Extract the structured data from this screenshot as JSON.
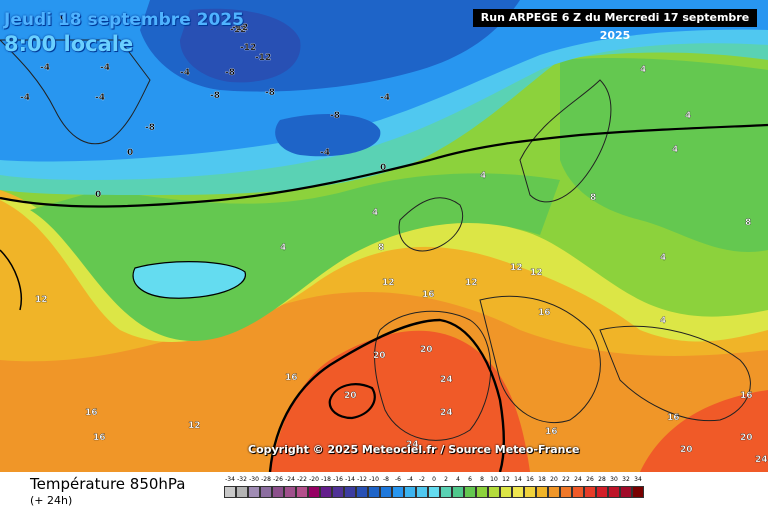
{
  "header": {
    "date": "Jeudi 18 septembre 2025",
    "time": "8:00 locale",
    "run": "Run ARPEGE 6 Z du Mercredi 17 septembre 2025"
  },
  "copyright": "Copyright © 2025 Meteociel.fr / Source Meteo-France",
  "footer": {
    "parameter": "Température 850hPa",
    "lead": "(+ 24h)"
  },
  "legend": {
    "values": [
      "-34",
      "-32",
      "-30",
      "-28",
      "-26",
      "-24",
      "-22",
      "-20",
      "-18",
      "-16",
      "-14",
      "-12",
      "-10",
      "-8",
      "-6",
      "-4",
      "-2",
      "0",
      "2",
      "4",
      "6",
      "8",
      "10",
      "12",
      "14",
      "16",
      "18",
      "20",
      "22",
      "24",
      "26",
      "28",
      "30",
      "32",
      "34"
    ],
    "colors": [
      "#c8c8c8",
      "#b4b4b4",
      "#a08cb4",
      "#8c6ea0",
      "#8c508c",
      "#a0508c",
      "#b4508c",
      "#960064",
      "#641e8c",
      "#503296",
      "#3c3ca0",
      "#2850b4",
      "#1e64c8",
      "#1e78dc",
      "#2896f0",
      "#3cb4f0",
      "#50c8f0",
      "#64dcf0",
      "#5ad2b4",
      "#50c88c",
      "#64c850",
      "#8cd23c",
      "#b4dc3c",
      "#dce646",
      "#f0e650",
      "#f0d23c",
      "#f0b428",
      "#f09628",
      "#f07828",
      "#f05a28",
      "#e63c28",
      "#d21e28",
      "#be1428",
      "#a00a28",
      "#780000"
    ]
  },
  "map_labels": [
    {
      "text": "-12",
      "tone": "cold"
    },
    {
      "text": "-8",
      "tone": "cold"
    },
    {
      "text": "-4",
      "tone": "cold"
    },
    {
      "text": "0",
      "tone": "cold"
    },
    {
      "text": "4",
      "tone": "mild"
    },
    {
      "text": "8",
      "tone": "mild"
    },
    {
      "text": "12",
      "tone": "warm"
    },
    {
      "text": "16",
      "tone": "warm"
    },
    {
      "text": "20",
      "tone": "hot"
    },
    {
      "text": "24",
      "tone": "hot"
    }
  ]
}
